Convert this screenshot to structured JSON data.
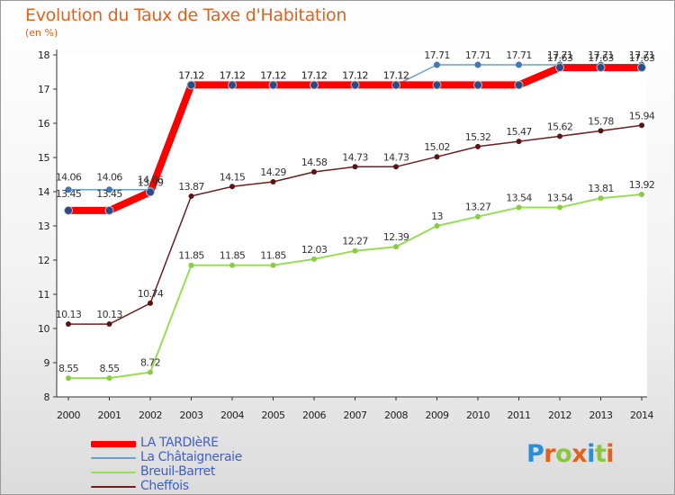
{
  "title": "Evolution du Taux de Taxe d'Habitation",
  "unit": "(en %)",
  "logo": {
    "letters": [
      "P",
      "r",
      "o",
      "x",
      "i",
      "t",
      "i"
    ],
    "colors": [
      "#2a8fd4",
      "#e0621e",
      "#8cc63f",
      "#e0621e",
      "#2a8fd4",
      "#8cc63f",
      "#e0621e"
    ]
  },
  "chart_data": {
    "type": "line",
    "title": "Evolution du Taux de Taxe d'Habitation",
    "ylabel": "(en %)",
    "xlabel": "",
    "ylim": [
      8,
      18
    ],
    "yticks": [
      8,
      9,
      10,
      11,
      12,
      13,
      14,
      15,
      16,
      17,
      18
    ],
    "grid": false,
    "legend_position": "bottom-left",
    "x": [
      "2000",
      "2001",
      "2002",
      "2003",
      "2004",
      "2005",
      "2006",
      "2007",
      "2008",
      "2009",
      "2010",
      "2011",
      "2012",
      "2013",
      "2014"
    ],
    "series": [
      {
        "name": "LA TARDIèRE",
        "color": "#ff0000",
        "values": [
          13.45,
          13.45,
          13.99,
          17.12,
          17.12,
          17.12,
          17.12,
          17.12,
          17.12,
          17.12,
          17.12,
          17.12,
          17.63,
          17.63,
          17.63
        ],
        "labels": [
          "13.45",
          "13.45",
          "13.99",
          "17.12",
          "17.12",
          "17.12",
          "17.12",
          "17.12",
          "17.12",
          "17.12",
          "17.12",
          "17.12",
          "17.63",
          "17.63",
          "17.63"
        ]
      },
      {
        "name": "La Châtaigneraie",
        "color": "#6aa0cc",
        "values": [
          14.06,
          14.06,
          14.06,
          17.12,
          17.12,
          17.12,
          17.12,
          17.12,
          17.12,
          17.71,
          17.71,
          17.71,
          17.71,
          17.71,
          17.71
        ],
        "labels": [
          "14.06",
          "14.06",
          "14.06",
          "17.12",
          "17.12",
          "17.12",
          "17.12",
          "17.12",
          "17.12",
          "17.71",
          "17.71",
          "17.71",
          "17.71",
          "17.71",
          "17.71"
        ]
      },
      {
        "name": "Breuil-Barret",
        "color": "#99dd55",
        "values": [
          8.55,
          8.55,
          8.72,
          11.85,
          11.85,
          11.85,
          12.03,
          12.27,
          12.39,
          13,
          13.27,
          13.54,
          13.54,
          13.81,
          13.92
        ],
        "labels": [
          "8.55",
          "8.55",
          "8.72",
          "11.85",
          "11.85",
          "11.85",
          "12.03",
          "12.27",
          "12.39",
          "13",
          "13.27",
          "13.54",
          "13.54",
          "13.81",
          "13.92"
        ]
      },
      {
        "name": "Cheffois",
        "color": "#6e1e1e",
        "values": [
          10.13,
          10.13,
          10.74,
          13.87,
          14.15,
          14.29,
          14.58,
          14.73,
          14.73,
          15.02,
          15.32,
          15.47,
          15.62,
          15.78,
          15.94
        ],
        "labels": [
          "10.13",
          "10.13",
          "10.74",
          "13.87",
          "14.15",
          "14.29",
          "14.58",
          "14.73",
          "14.73",
          "15.02",
          "15.32",
          "15.47",
          "15.62",
          "15.78",
          "15.94"
        ]
      }
    ],
    "data_labels_shown": [
      [
        "13.45",
        "13.45",
        "13.99",
        "17.12",
        "17.12",
        "17.12",
        "17.12",
        "17.12",
        "17.12",
        "",
        "",
        "",
        "17.63",
        "17.63",
        "17.63"
      ],
      [
        "14.06",
        "14.06",
        "14.06",
        "17.12",
        "17.12",
        "17.12",
        "17.12",
        "17.12",
        "17.12",
        "17.71",
        "17.71",
        "17.71",
        "17.71",
        "17.71",
        "17.71"
      ],
      [
        "8.55",
        "8.55",
        "8.72",
        "11.85",
        "11.85",
        "11.85",
        "12.03",
        "12.27",
        "12.39",
        "13",
        "13.27",
        "13.54",
        "13.54",
        "13.81",
        "13.92"
      ],
      [
        "10.13",
        "10.13",
        "10.74",
        "13.87",
        "14.15",
        "14.29",
        "14.58",
        "14.73",
        "14.73",
        "15.02",
        "15.32",
        "15.47",
        "15.62",
        "15.78",
        "15.94"
      ]
    ]
  }
}
